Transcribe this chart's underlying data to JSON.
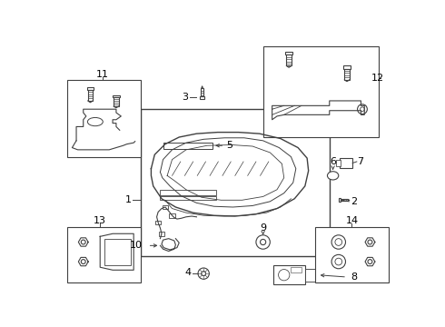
{
  "background_color": "#ffffff",
  "line_color": "#404040",
  "label_color": "#000000",
  "fig_w": 4.9,
  "fig_h": 3.6,
  "dpi": 100
}
